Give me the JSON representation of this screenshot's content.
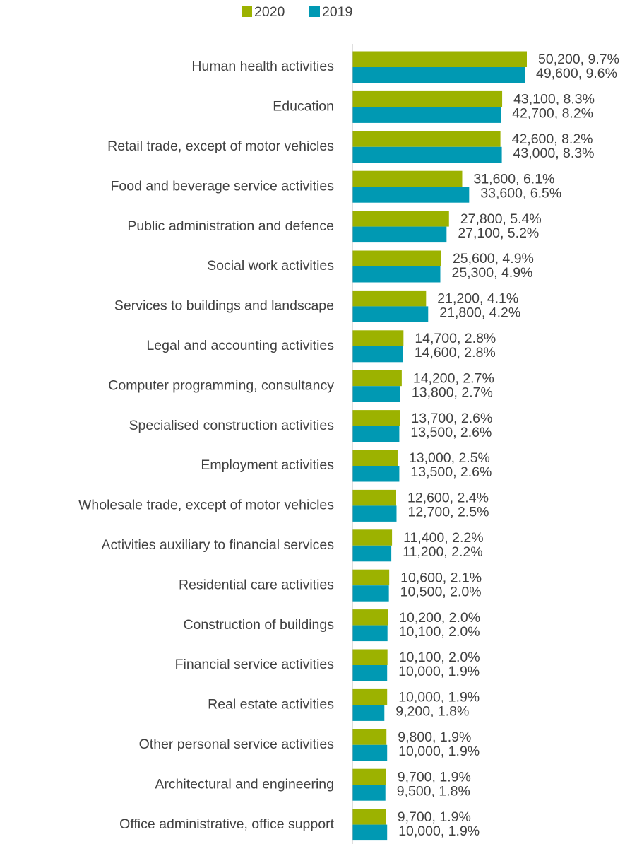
{
  "chart_data": {
    "type": "bar",
    "orientation": "horizontal",
    "categories": [
      "Human health activities",
      "Education",
      "Retail trade, except of motor vehicles",
      "Food and beverage service activities",
      "Public administration and defence",
      "Social work activities",
      "Services to buildings and landscape",
      "Legal and accounting activities",
      "Computer programming, consultancy",
      "Specialised construction activities",
      "Employment activities",
      "Wholesale trade, except of motor vehicles",
      "Activities auxiliary to financial services",
      "Residential care activities",
      "Construction of buildings",
      "Financial service activities",
      "Real estate activities",
      "Other personal service activities",
      "Architectural and engineering",
      "Office administrative, office support"
    ],
    "series": [
      {
        "name": "2020",
        "color": "#9cb200",
        "values": [
          50200,
          43100,
          42600,
          31600,
          27800,
          25600,
          21200,
          14700,
          14200,
          13700,
          13000,
          12600,
          11400,
          10600,
          10200,
          10100,
          10000,
          9800,
          9700,
          9700
        ],
        "value_labels": [
          "50,200, 9.7%",
          "43,100, 8.3%",
          "42,600, 8.2%",
          "31,600, 6.1%",
          "27,800, 5.4%",
          "25,600, 4.9%",
          "21,200, 4.1%",
          "14,700, 2.8%",
          "14,200, 2.7%",
          "13,700, 2.6%",
          "13,000, 2.5%",
          "12,600, 2.4%",
          "11,400, 2.2%",
          "10,600, 2.1%",
          "10,200, 2.0%",
          "10,100, 2.0%",
          "10,000, 1.9%",
          "9,800, 1.9%",
          "9,700, 1.9%",
          "9,700, 1.9%"
        ]
      },
      {
        "name": "2019",
        "color": "#0099b3",
        "values": [
          49600,
          42700,
          43000,
          33600,
          27100,
          25300,
          21800,
          14600,
          13800,
          13500,
          13500,
          12700,
          11200,
          10500,
          10100,
          10000,
          9200,
          10000,
          9500,
          10000
        ],
        "value_labels": [
          "49,600, 9.6%",
          "42,700, 8.2%",
          "43,000, 8.3%",
          "33,600, 6.5%",
          "27,100, 5.2%",
          "25,300, 4.9%",
          "21,800, 4.2%",
          "14,600, 2.8%",
          "13,800, 2.7%",
          "13,500, 2.6%",
          "13,500, 2.6%",
          "12,700, 2.5%",
          "11,200, 2.2%",
          "10,500, 2.0%",
          "10,100, 2.0%",
          "10,000, 1.9%",
          "9,200, 1.8%",
          "10,000, 1.9%",
          "9,500, 1.8%",
          "10,000, 1.9%"
        ]
      }
    ],
    "legend": "top"
  }
}
